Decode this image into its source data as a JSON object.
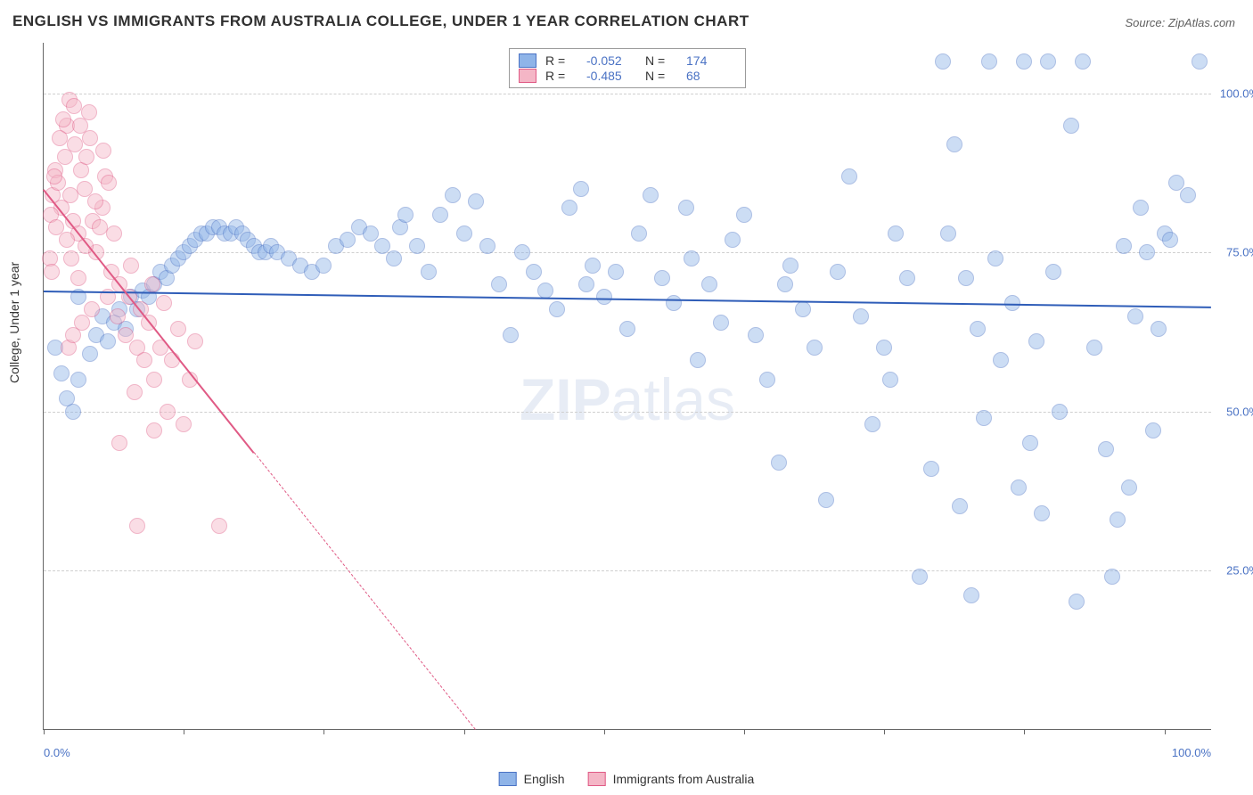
{
  "title": "ENGLISH VS IMMIGRANTS FROM AUSTRALIA COLLEGE, UNDER 1 YEAR CORRELATION CHART",
  "source": "Source: ZipAtlas.com",
  "watermark_bold": "ZIP",
  "watermark_rest": "atlas",
  "ylabel": "College, Under 1 year",
  "chart": {
    "type": "scatter",
    "background_color": "#ffffff",
    "grid_color": "#cfcfcf",
    "xlim": [
      0,
      100
    ],
    "ylim": [
      0,
      108
    ],
    "xticks": [
      0,
      12,
      24,
      36,
      48,
      60,
      72,
      84,
      96
    ],
    "xtick_labels": {
      "0": "0.0%",
      "100": "100.0%"
    },
    "ytick_values": [
      25,
      50,
      75,
      100
    ],
    "ytick_labels": [
      "25.0%",
      "50.0%",
      "75.0%",
      "100.0%"
    ],
    "marker_radius": 9,
    "marker_opacity": 0.45,
    "series": [
      {
        "name": "English",
        "color_fill": "#8fb4e8",
        "color_stroke": "#4a72c4",
        "reg_line_color": "#2f5db8",
        "reg_line_width": 2,
        "reg_y_at_x0": 69,
        "reg_y_at_x100": 66.5,
        "reg_solid_xmax": 100,
        "R_label": "R =",
        "R_value": "-0.052",
        "N_label": "N =",
        "N_value": "174",
        "points": [
          [
            3,
            68
          ],
          [
            4,
            59
          ],
          [
            4.5,
            62
          ],
          [
            5,
            65
          ],
          [
            5.5,
            61
          ],
          [
            6,
            64
          ],
          [
            6.5,
            66
          ],
          [
            7,
            63
          ],
          [
            7.5,
            68
          ],
          [
            8,
            66
          ],
          [
            8.5,
            69
          ],
          [
            9,
            68
          ],
          [
            9.5,
            70
          ],
          [
            10,
            72
          ],
          [
            10.5,
            71
          ],
          [
            11,
            73
          ],
          [
            11.5,
            74
          ],
          [
            12,
            75
          ],
          [
            12.5,
            76
          ],
          [
            13,
            77
          ],
          [
            13.5,
            78
          ],
          [
            14,
            78
          ],
          [
            14.5,
            79
          ],
          [
            15,
            79
          ],
          [
            15.5,
            78
          ],
          [
            16,
            78
          ],
          [
            16.5,
            79
          ],
          [
            17,
            78
          ],
          [
            17.5,
            77
          ],
          [
            18,
            76
          ],
          [
            18.5,
            75
          ],
          [
            19,
            75
          ],
          [
            19.5,
            76
          ],
          [
            20,
            75
          ],
          [
            21,
            74
          ],
          [
            22,
            73
          ],
          [
            23,
            72
          ],
          [
            24,
            73
          ],
          [
            25,
            76
          ],
          [
            26,
            77
          ],
          [
            27,
            79
          ],
          [
            28,
            78
          ],
          [
            29,
            76
          ],
          [
            30,
            74
          ],
          [
            30.5,
            79
          ],
          [
            31,
            81
          ],
          [
            32,
            76
          ],
          [
            33,
            72
          ],
          [
            34,
            81
          ],
          [
            35,
            84
          ],
          [
            36,
            78
          ],
          [
            37,
            83
          ],
          [
            38,
            76
          ],
          [
            39,
            70
          ],
          [
            40,
            62
          ],
          [
            41,
            75
          ],
          [
            42,
            72
          ],
          [
            43,
            69
          ],
          [
            44,
            66
          ],
          [
            45,
            82
          ],
          [
            46,
            85
          ],
          [
            46.5,
            70
          ],
          [
            47,
            73
          ],
          [
            48,
            68
          ],
          [
            49,
            72
          ],
          [
            50,
            63
          ],
          [
            51,
            78
          ],
          [
            52,
            84
          ],
          [
            53,
            71
          ],
          [
            54,
            67
          ],
          [
            55,
            82
          ],
          [
            55.5,
            74
          ],
          [
            56,
            58
          ],
          [
            57,
            70
          ],
          [
            58,
            64
          ],
          [
            59,
            77
          ],
          [
            60,
            81
          ],
          [
            61,
            62
          ],
          [
            62,
            55
          ],
          [
            63,
            42
          ],
          [
            63.5,
            70
          ],
          [
            64,
            73
          ],
          [
            65,
            66
          ],
          [
            66,
            60
          ],
          [
            67,
            36
          ],
          [
            68,
            72
          ],
          [
            69,
            87
          ],
          [
            70,
            65
          ],
          [
            71,
            48
          ],
          [
            72,
            60
          ],
          [
            72.5,
            55
          ],
          [
            73,
            78
          ],
          [
            74,
            71
          ],
          [
            75,
            24
          ],
          [
            76,
            41
          ],
          [
            77,
            105
          ],
          [
            77.5,
            78
          ],
          [
            78,
            92
          ],
          [
            78.5,
            35
          ],
          [
            79,
            71
          ],
          [
            79.5,
            21
          ],
          [
            80,
            63
          ],
          [
            80.5,
            49
          ],
          [
            81,
            105
          ],
          [
            81.5,
            74
          ],
          [
            82,
            58
          ],
          [
            83,
            67
          ],
          [
            83.5,
            38
          ],
          [
            84,
            105
          ],
          [
            84.5,
            45
          ],
          [
            85,
            61
          ],
          [
            85.5,
            34
          ],
          [
            86,
            105
          ],
          [
            86.5,
            72
          ],
          [
            87,
            50
          ],
          [
            88,
            95
          ],
          [
            88.5,
            20
          ],
          [
            89,
            105
          ],
          [
            90,
            60
          ],
          [
            91,
            44
          ],
          [
            91.5,
            24
          ],
          [
            92,
            33
          ],
          [
            92.5,
            76
          ],
          [
            93,
            38
          ],
          [
            93.5,
            65
          ],
          [
            94,
            82
          ],
          [
            94.5,
            75
          ],
          [
            95,
            47
          ],
          [
            95.5,
            63
          ],
          [
            96,
            78
          ],
          [
            96.5,
            77
          ],
          [
            97,
            86
          ],
          [
            98,
            84
          ],
          [
            99,
            105
          ],
          [
            2.5,
            50
          ],
          [
            3,
            55
          ],
          [
            2,
            52
          ],
          [
            1.5,
            56
          ],
          [
            1,
            60
          ]
        ]
      },
      {
        "name": "Immigrants from Australia",
        "color_fill": "#f4b6c6",
        "color_stroke": "#e05a85",
        "reg_line_color": "#e05a85",
        "reg_line_width": 1.5,
        "reg_y_at_x0": 85,
        "reg_y_at_x100": -145,
        "reg_solid_xmax": 18,
        "R_label": "R =",
        "R_value": "-0.485",
        "N_label": "N =",
        "N_value": "68",
        "points": [
          [
            0.8,
            84
          ],
          [
            1,
            88
          ],
          [
            1.2,
            86
          ],
          [
            1.5,
            82
          ],
          [
            1.8,
            90
          ],
          [
            2,
            95
          ],
          [
            2.2,
            99
          ],
          [
            2.3,
            84
          ],
          [
            2.5,
            80
          ],
          [
            2.7,
            92
          ],
          [
            3,
            78
          ],
          [
            3.2,
            88
          ],
          [
            3.5,
            85
          ],
          [
            3.7,
            90
          ],
          [
            4,
            93
          ],
          [
            4.2,
            80
          ],
          [
            4.5,
            75
          ],
          [
            5,
            82
          ],
          [
            5.3,
            87
          ],
          [
            5.5,
            68
          ],
          [
            5.8,
            72
          ],
          [
            6,
            78
          ],
          [
            6.3,
            65
          ],
          [
            6.5,
            70
          ],
          [
            7,
            62
          ],
          [
            7.3,
            68
          ],
          [
            7.5,
            73
          ],
          [
            8,
            60
          ],
          [
            8.3,
            66
          ],
          [
            8.6,
            58
          ],
          [
            9,
            64
          ],
          [
            9.3,
            70
          ],
          [
            9.5,
            55
          ],
          [
            10,
            60
          ],
          [
            10.3,
            67
          ],
          [
            10.6,
            50
          ],
          [
            11,
            58
          ],
          [
            11.5,
            63
          ],
          [
            12,
            48
          ],
          [
            12.5,
            55
          ],
          [
            13,
            61
          ],
          [
            2,
            77
          ],
          [
            2.4,
            74
          ],
          [
            3,
            71
          ],
          [
            3.6,
            76
          ],
          [
            1.4,
            93
          ],
          [
            1.7,
            96
          ],
          [
            2.6,
            98
          ],
          [
            3.1,
            95
          ],
          [
            3.9,
            97
          ],
          [
            4.4,
            83
          ],
          [
            4.8,
            79
          ],
          [
            5.1,
            91
          ],
          [
            5.6,
            86
          ],
          [
            0.6,
            81
          ],
          [
            0.9,
            87
          ],
          [
            1.1,
            79
          ],
          [
            8,
            32
          ],
          [
            9.5,
            47
          ],
          [
            15,
            32
          ],
          [
            6.5,
            45
          ],
          [
            7.8,
            53
          ],
          [
            2.1,
            60
          ],
          [
            2.5,
            62
          ],
          [
            3.3,
            64
          ],
          [
            4.1,
            66
          ],
          [
            0.5,
            74
          ],
          [
            0.7,
            72
          ]
        ]
      }
    ]
  },
  "legend_bottom": [
    {
      "swatch_fill": "#8fb4e8",
      "swatch_stroke": "#4a72c4",
      "label": "English"
    },
    {
      "swatch_fill": "#f4b6c6",
      "swatch_stroke": "#e05a85",
      "label": "Immigrants from Australia"
    }
  ]
}
